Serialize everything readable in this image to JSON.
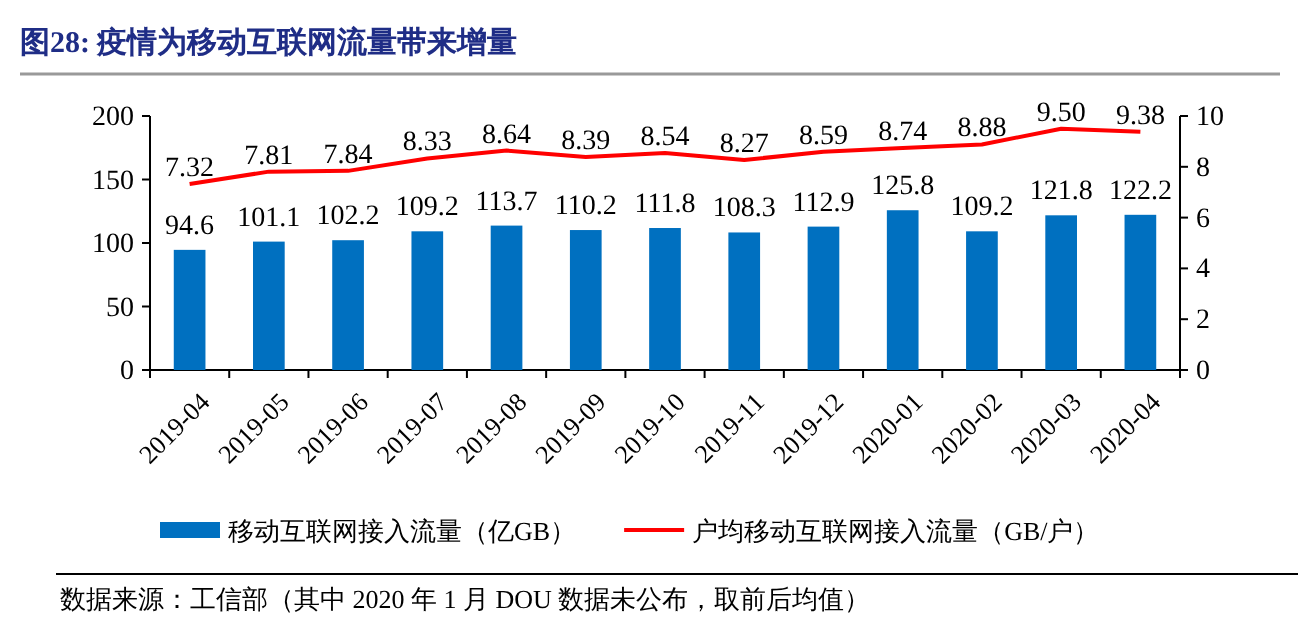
{
  "chart_data": {
    "type": "bar",
    "title": "图28:  疫情为移动互联网流量带来增量",
    "categories": [
      "2019-04",
      "2019-05",
      "2019-06",
      "2019-07",
      "2019-08",
      "2019-09",
      "2019-10",
      "2019-11",
      "2019-12",
      "2020-01",
      "2020-02",
      "2020-03",
      "2020-04"
    ],
    "series": [
      {
        "name": "移动互联网接入流量（亿GB）",
        "color": "#0070c0",
        "values": [
          94.6,
          101.1,
          102.2,
          109.2,
          113.7,
          110.2,
          111.8,
          108.3,
          112.9,
          125.8,
          109.2,
          121.8,
          122.2
        ]
      },
      {
        "name": "户均移动互联网接入流量（GB/户）",
        "type": "line",
        "axis": "y2",
        "color": "#ff0000",
        "values": [
          7.32,
          7.81,
          7.84,
          8.33,
          8.64,
          8.39,
          8.54,
          8.27,
          8.59,
          8.74,
          8.88,
          9.5,
          9.38
        ],
        "value_labels": [
          "7.32",
          "7.81",
          "7.84",
          "8.33",
          "8.64",
          "8.39",
          "8.54",
          "8.27",
          "8.59",
          "8.74",
          "8.88",
          "9.50",
          "9.38"
        ]
      }
    ],
    "ylim": [
      0,
      200
    ],
    "yticks": [
      0,
      50,
      100,
      150,
      200
    ],
    "y2lim": [
      0,
      10
    ],
    "y2ticks": [
      0,
      2,
      4,
      6,
      8,
      10
    ],
    "data_labels": true,
    "legend": "bottom",
    "grid": false,
    "marker": "none",
    "annotations": [
      "数据来源：工信部（其中 2020 年 1 月 DOU 数据未公布，取前后均值）"
    ]
  }
}
